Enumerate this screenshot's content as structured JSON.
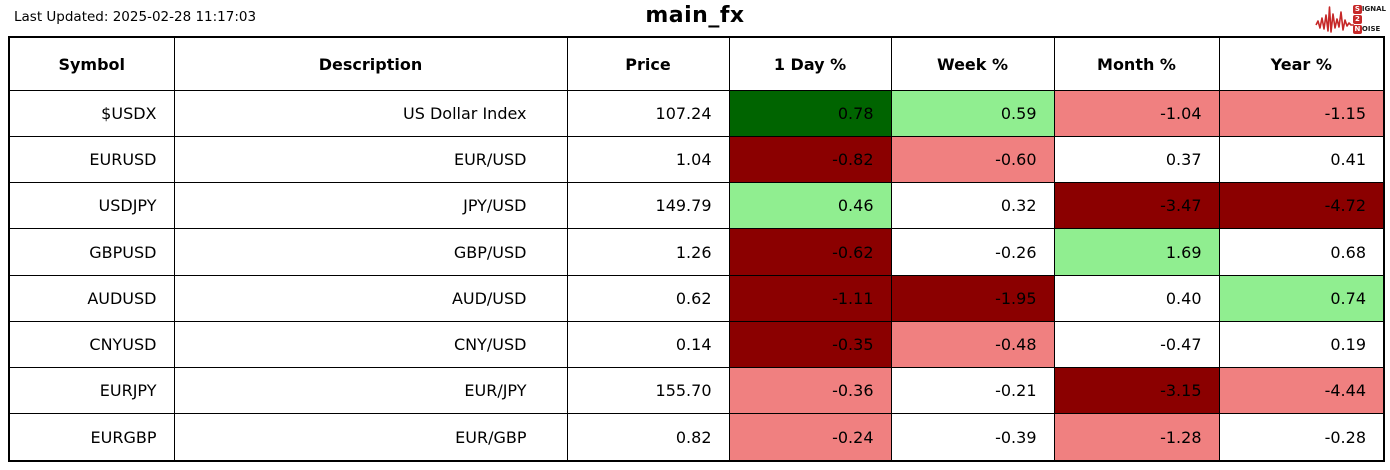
{
  "page": {
    "last_updated": "Last Updated: 2025-02-28 11:17:03",
    "title": "main_fx"
  },
  "logo": {
    "signal_first": "S",
    "signal_rest": "IGNAL",
    "two": "2",
    "noise_first": "N",
    "noise_rest": "OISE",
    "red": "#C62828"
  },
  "colors": {
    "gain_strong": "#006400",
    "gain": "#90EE90",
    "loss": "#F08080",
    "loss_strong": "#8B0000",
    "grid": "#000000",
    "background": "#FFFFFF",
    "text": "#000000"
  },
  "chart_data": {
    "type": "table",
    "title": "main_fx",
    "columns": [
      "Symbol",
      "Description",
      "Price",
      "1 Day %",
      "Week %",
      "Month %",
      "Year %"
    ],
    "column_keys": [
      "symbol",
      "description",
      "price",
      "1day-pct",
      "week-pct",
      "month-pct",
      "year-pct"
    ],
    "legend_note": "cell backgrounds: gain_strong=dark green, gain=light green, loss=light red, loss_strong=dark red",
    "rows": [
      {
        "cells": [
          {
            "text": "$USDX"
          },
          {
            "text": "US Dollar Index"
          },
          {
            "text": "107.24"
          },
          {
            "text": "0.78",
            "bg": "gain_strong"
          },
          {
            "text": "0.59",
            "bg": "gain"
          },
          {
            "text": "-1.04",
            "bg": "loss"
          },
          {
            "text": "-1.15",
            "bg": "loss"
          }
        ]
      },
      {
        "cells": [
          {
            "text": "EURUSD"
          },
          {
            "text": "EUR/USD"
          },
          {
            "text": "1.04"
          },
          {
            "text": "-0.82",
            "bg": "loss_strong"
          },
          {
            "text": "-0.60",
            "bg": "loss"
          },
          {
            "text": "0.37"
          },
          {
            "text": "0.41"
          }
        ]
      },
      {
        "cells": [
          {
            "text": "USDJPY"
          },
          {
            "text": "JPY/USD"
          },
          {
            "text": "149.79"
          },
          {
            "text": "0.46",
            "bg": "gain"
          },
          {
            "text": "0.32"
          },
          {
            "text": "-3.47",
            "bg": "loss_strong"
          },
          {
            "text": "-4.72",
            "bg": "loss_strong"
          }
        ]
      },
      {
        "cells": [
          {
            "text": "GBPUSD"
          },
          {
            "text": "GBP/USD"
          },
          {
            "text": "1.26"
          },
          {
            "text": "-0.62",
            "bg": "loss_strong"
          },
          {
            "text": "-0.26"
          },
          {
            "text": "1.69",
            "bg": "gain"
          },
          {
            "text": "0.68"
          }
        ]
      },
      {
        "cells": [
          {
            "text": "AUDUSD"
          },
          {
            "text": "AUD/USD"
          },
          {
            "text": "0.62"
          },
          {
            "text": "-1.11",
            "bg": "loss_strong"
          },
          {
            "text": "-1.95",
            "bg": "loss_strong"
          },
          {
            "text": "0.40"
          },
          {
            "text": "0.74",
            "bg": "gain"
          }
        ]
      },
      {
        "cells": [
          {
            "text": "CNYUSD"
          },
          {
            "text": "CNY/USD"
          },
          {
            "text": "0.14"
          },
          {
            "text": "-0.35",
            "bg": "loss_strong"
          },
          {
            "text": "-0.48",
            "bg": "loss"
          },
          {
            "text": "-0.47"
          },
          {
            "text": "0.19"
          }
        ]
      },
      {
        "cells": [
          {
            "text": "EURJPY"
          },
          {
            "text": "EUR/JPY"
          },
          {
            "text": "155.70"
          },
          {
            "text": "-0.36",
            "bg": "loss"
          },
          {
            "text": "-0.21"
          },
          {
            "text": "-3.15",
            "bg": "loss_strong"
          },
          {
            "text": "-4.44",
            "bg": "loss"
          }
        ]
      },
      {
        "cells": [
          {
            "text": "EURGBP"
          },
          {
            "text": "EUR/GBP"
          },
          {
            "text": "0.82"
          },
          {
            "text": "-0.24",
            "bg": "loss"
          },
          {
            "text": "-0.39"
          },
          {
            "text": "-1.28",
            "bg": "loss"
          },
          {
            "text": "-0.28"
          }
        ]
      }
    ]
  }
}
